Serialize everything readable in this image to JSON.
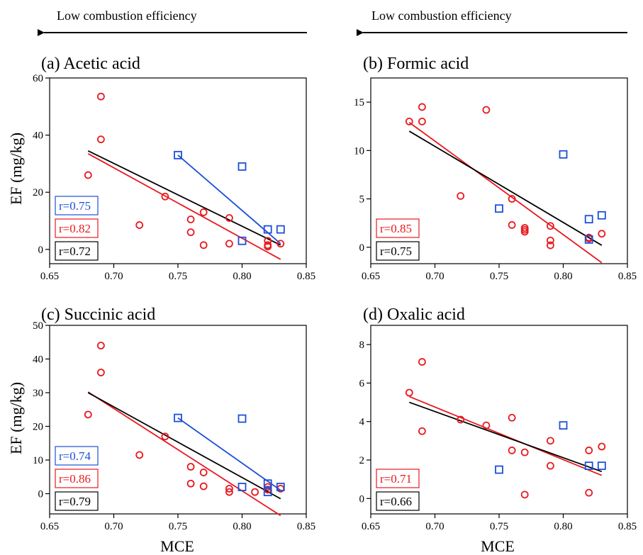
{
  "figure": {
    "arrow_label": "Low combustion efficiency",
    "xlabel": "MCE",
    "ylabel": "EF (mg/kg)"
  },
  "colors": {
    "red": "#e8191f",
    "blue": "#1d4fd8",
    "black": "#000000"
  },
  "chart_data": [
    {
      "type": "scatter",
      "title": "(a) Acetic acid",
      "xlim": [
        0.65,
        0.85
      ],
      "xticks": [
        "0.65",
        "0.70",
        "0.75",
        "0.80",
        "0.85"
      ],
      "ylim": [
        -5,
        60
      ],
      "yticks": [
        "0",
        "20",
        "40",
        "60"
      ],
      "series": [
        {
          "color": "red",
          "marker": "circle",
          "x": [
            0.68,
            0.69,
            0.69,
            0.72,
            0.74,
            0.76,
            0.76,
            0.77,
            0.77,
            0.79,
            0.79,
            0.82,
            0.82,
            0.82,
            0.83
          ],
          "y": [
            26,
            53.5,
            38.5,
            8.5,
            18.5,
            10.5,
            6,
            13,
            1.5,
            11,
            2,
            3,
            1.5,
            1,
            2
          ]
        },
        {
          "color": "blue",
          "marker": "square",
          "x": [
            0.75,
            0.8,
            0.8,
            0.82,
            0.83
          ],
          "y": [
            33,
            29,
            3,
            7,
            7
          ]
        }
      ],
      "fits": [
        {
          "color": "red",
          "x": [
            0.68,
            0.83
          ],
          "y": [
            33.5,
            -3.5
          ]
        },
        {
          "color": "blue",
          "x": [
            0.75,
            0.83
          ],
          "y": [
            33,
            2
          ]
        },
        {
          "color": "black",
          "x": [
            0.68,
            0.83
          ],
          "y": [
            34.5,
            1.5
          ]
        }
      ],
      "annotations": [
        {
          "color": "blue",
          "text": "r=0.75"
        },
        {
          "color": "red",
          "text": "r=0.82"
        },
        {
          "color": "black",
          "text": "r=0.72"
        }
      ]
    },
    {
      "type": "scatter",
      "title": "(b) Formic acid",
      "xlim": [
        0.65,
        0.85
      ],
      "xticks": [
        "0.65",
        "0.70",
        "0.75",
        "0.80",
        "0.85"
      ],
      "ylim": [
        -1.7,
        17.5
      ],
      "yticks": [
        "0",
        "5",
        "10",
        "15"
      ],
      "series": [
        {
          "color": "red",
          "marker": "circle",
          "x": [
            0.68,
            0.69,
            0.69,
            0.72,
            0.74,
            0.76,
            0.76,
            0.77,
            0.77,
            0.77,
            0.79,
            0.79,
            0.79,
            0.82,
            0.82,
            0.83
          ],
          "y": [
            13,
            14.5,
            13,
            5.3,
            14.2,
            5,
            2.3,
            2,
            1.8,
            1.6,
            2.2,
            0.7,
            0.2,
            1,
            0.9,
            1.4
          ]
        },
        {
          "color": "blue",
          "marker": "square",
          "x": [
            0.75,
            0.8,
            0.82,
            0.82,
            0.83
          ],
          "y": [
            4,
            9.6,
            2.9,
            0.8,
            3.3
          ]
        }
      ],
      "fits": [
        {
          "color": "red",
          "x": [
            0.68,
            0.83
          ],
          "y": [
            12.9,
            -1.6
          ]
        },
        {
          "color": "black",
          "x": [
            0.68,
            0.83
          ],
          "y": [
            12.0,
            0.2
          ]
        }
      ],
      "annotations": [
        {
          "color": "red",
          "text": "r=0.85"
        },
        {
          "color": "black",
          "text": "r=0.75"
        }
      ]
    },
    {
      "type": "scatter",
      "title": "(c) Succinic acid",
      "xlim": [
        0.65,
        0.85
      ],
      "xticks": [
        "0.65",
        "0.70",
        "0.75",
        "0.80",
        "0.85"
      ],
      "ylim": [
        -6,
        50
      ],
      "yticks": [
        "0",
        "10",
        "20",
        "30",
        "40",
        "50"
      ],
      "series": [
        {
          "color": "red",
          "marker": "circle",
          "x": [
            0.68,
            0.69,
            0.69,
            0.72,
            0.74,
            0.76,
            0.76,
            0.77,
            0.77,
            0.79,
            0.79,
            0.81,
            0.82,
            0.82,
            0.83
          ],
          "y": [
            23.5,
            44,
            36,
            11.5,
            17,
            8,
            3,
            6.3,
            2.2,
            1.5,
            0.5,
            0.5,
            2,
            1.2,
            1.5
          ]
        },
        {
          "color": "blue",
          "marker": "square",
          "x": [
            0.75,
            0.8,
            0.8,
            0.82,
            0.82,
            0.83
          ],
          "y": [
            22.5,
            22.3,
            2,
            3,
            0.5,
            2
          ]
        }
      ],
      "fits": [
        {
          "color": "red",
          "x": [
            0.68,
            0.83
          ],
          "y": [
            30.2,
            -6.5
          ]
        },
        {
          "color": "blue",
          "x": [
            0.75,
            0.83
          ],
          "y": [
            22.5,
            1
          ]
        },
        {
          "color": "black",
          "x": [
            0.68,
            0.83
          ],
          "y": [
            30,
            -1.5
          ]
        }
      ],
      "annotations": [
        {
          "color": "blue",
          "text": "r=0.74"
        },
        {
          "color": "red",
          "text": "r=0.86"
        },
        {
          "color": "black",
          "text": "r=0.79"
        }
      ]
    },
    {
      "type": "scatter",
      "title": "(d) Oxalic acid",
      "xlim": [
        0.65,
        0.85
      ],
      "xticks": [
        "0.65",
        "0.70",
        "0.75",
        "0.80",
        "0.85"
      ],
      "ylim": [
        -0.8,
        9
      ],
      "yticks": [
        "0",
        "2",
        "4",
        "6",
        "8"
      ],
      "series": [
        {
          "color": "red",
          "marker": "circle",
          "x": [
            0.68,
            0.69,
            0.69,
            0.72,
            0.74,
            0.76,
            0.76,
            0.77,
            0.77,
            0.79,
            0.79,
            0.82,
            0.82,
            0.83
          ],
          "y": [
            5.5,
            7.1,
            3.5,
            4.1,
            3.8,
            4.2,
            2.5,
            2.4,
            0.2,
            3,
            1.7,
            2.5,
            0.3,
            2.7
          ]
        },
        {
          "color": "blue",
          "marker": "square",
          "x": [
            0.75,
            0.8,
            0.82,
            0.83
          ],
          "y": [
            1.5,
            3.8,
            1.7,
            1.7
          ]
        }
      ],
      "fits": [
        {
          "color": "red",
          "x": [
            0.68,
            0.83
          ],
          "y": [
            5.3,
            1.2
          ]
        },
        {
          "color": "black",
          "x": [
            0.68,
            0.83
          ],
          "y": [
            5.0,
            1.4
          ]
        }
      ],
      "annotations": [
        {
          "color": "red",
          "text": "r=0.71"
        },
        {
          "color": "black",
          "text": "r=0.66"
        }
      ]
    }
  ]
}
